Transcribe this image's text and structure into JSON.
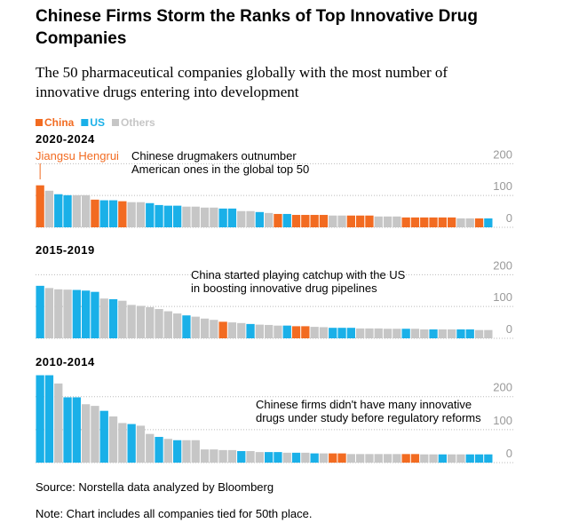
{
  "title": [
    "Chinese Firms Storm the Ranks of Top Innovative Drug",
    "Companies"
  ],
  "subtitle": [
    "The 50 pharmaceutical companies globally with the most number of",
    "innovative drugs entering into development"
  ],
  "source": "Source: Norstella data analyzed by Bloomberg",
  "note": "Note: Chart includes all companies tied for 50th place.",
  "chart_data": [
    {
      "type": "bar",
      "title": "2020-2024",
      "bar_label": "Jiangsu Hengrui",
      "annotation": [
        "Chinese drugmakers outnumber",
        "American ones in the global top 50"
      ],
      "ylim": [
        0,
        240
      ],
      "yticks": [
        0,
        100,
        200
      ],
      "grid": true,
      "series": [
        {
          "name": "China",
          "color": "#f26b21",
          "values": [
            132,
            null,
            null,
            null,
            null,
            null,
            87,
            null,
            null,
            82,
            null,
            null,
            null,
            null,
            null,
            null,
            null,
            null,
            null,
            null,
            null,
            null,
            null,
            null,
            null,
            null,
            42,
            null,
            39,
            39,
            39,
            39,
            null,
            null,
            37,
            37,
            37,
            null,
            null,
            null,
            31,
            31,
            31,
            31,
            31,
            31,
            null,
            null,
            28,
            null
          ]
        },
        {
          "name": "US",
          "color": "#1ab0e8",
          "values": [
            null,
            null,
            104,
            101,
            null,
            null,
            null,
            85,
            85,
            null,
            null,
            null,
            76,
            70,
            68,
            68,
            null,
            null,
            null,
            null,
            59,
            59,
            null,
            null,
            48,
            null,
            null,
            42,
            null,
            null,
            null,
            null,
            null,
            null,
            null,
            null,
            null,
            null,
            null,
            null,
            null,
            null,
            null,
            null,
            null,
            null,
            null,
            null,
            null,
            28
          ]
        },
        {
          "name": "Others",
          "color": "#c6c6c6",
          "values": [
            null,
            115,
            null,
            null,
            101,
            101,
            null,
            null,
            null,
            null,
            79,
            79,
            null,
            null,
            null,
            null,
            65,
            65,
            62,
            62,
            null,
            null,
            51,
            51,
            null,
            45,
            null,
            null,
            null,
            null,
            null,
            null,
            37,
            37,
            null,
            null,
            null,
            34,
            34,
            34,
            null,
            null,
            null,
            null,
            null,
            null,
            28,
            28,
            null,
            null
          ]
        }
      ]
    },
    {
      "type": "bar",
      "title": "2015-2019",
      "annotation": [
        "China started playing catchup with the US",
        "in boosting innovative drug pipelines"
      ],
      "ylim": [
        0,
        240
      ],
      "yticks": [
        0,
        100,
        200
      ],
      "grid": true,
      "series": [
        {
          "name": "China",
          "color": "#f26b21",
          "values": [
            null,
            null,
            null,
            null,
            null,
            null,
            null,
            null,
            null,
            null,
            null,
            null,
            null,
            null,
            null,
            null,
            null,
            null,
            null,
            null,
            52,
            null,
            null,
            null,
            null,
            null,
            null,
            null,
            38,
            38,
            null,
            null,
            null,
            null,
            null,
            null,
            null,
            null,
            null,
            null,
            null,
            null,
            null,
            null,
            null,
            null,
            null,
            null,
            null,
            null
          ]
        },
        {
          "name": "US",
          "color": "#1ab0e8",
          "values": [
            165,
            null,
            null,
            null,
            152,
            150,
            146,
            null,
            123,
            null,
            null,
            null,
            null,
            null,
            null,
            null,
            72,
            null,
            null,
            null,
            null,
            null,
            null,
            45,
            null,
            null,
            null,
            40,
            null,
            null,
            null,
            null,
            33,
            33,
            33,
            null,
            null,
            null,
            null,
            null,
            30,
            null,
            null,
            28,
            null,
            null,
            28,
            28,
            null,
            null
          ]
        },
        {
          "name": "Others",
          "color": "#c6c6c6",
          "values": [
            null,
            158,
            154,
            153,
            null,
            null,
            null,
            125,
            null,
            118,
            105,
            102,
            98,
            92,
            85,
            78,
            null,
            68,
            62,
            58,
            null,
            50,
            48,
            null,
            43,
            42,
            40,
            null,
            null,
            null,
            36,
            35,
            null,
            null,
            null,
            31,
            31,
            31,
            30,
            30,
            null,
            30,
            28,
            null,
            28,
            28,
            null,
            null,
            26,
            26
          ]
        }
      ]
    },
    {
      "type": "bar",
      "title": "2010-2014",
      "annotation": [
        "Chinese firms didn't have many innovative",
        "drugs under study before regulatory reforms"
      ],
      "ylim": [
        0,
        280
      ],
      "yticks": [
        0,
        100,
        200
      ],
      "grid": true,
      "series": [
        {
          "name": "China",
          "color": "#f26b21",
          "values": [
            null,
            null,
            null,
            null,
            null,
            null,
            null,
            null,
            null,
            null,
            null,
            null,
            null,
            null,
            null,
            null,
            null,
            null,
            null,
            null,
            null,
            null,
            null,
            null,
            null,
            null,
            null,
            null,
            null,
            null,
            null,
            null,
            28,
            28,
            null,
            null,
            null,
            null,
            null,
            null,
            26,
            26,
            null,
            null,
            null,
            null,
            null,
            null,
            null,
            null
          ]
        },
        {
          "name": "US",
          "color": "#1ab0e8",
          "values": [
            265,
            265,
            null,
            198,
            198,
            null,
            null,
            157,
            null,
            null,
            117,
            null,
            null,
            78,
            null,
            68,
            null,
            null,
            null,
            null,
            null,
            null,
            35,
            null,
            null,
            32,
            32,
            null,
            30,
            null,
            28,
            null,
            null,
            null,
            null,
            null,
            null,
            null,
            null,
            null,
            null,
            null,
            null,
            null,
            25,
            null,
            null,
            25,
            25,
            25
          ]
        },
        {
          "name": "Others",
          "color": "#c6c6c6",
          "values": [
            null,
            null,
            240,
            null,
            null,
            177,
            172,
            null,
            140,
            120,
            null,
            112,
            87,
            null,
            72,
            null,
            68,
            68,
            40,
            40,
            38,
            38,
            null,
            35,
            32,
            null,
            null,
            30,
            null,
            30,
            null,
            28,
            null,
            null,
            26,
            26,
            26,
            26,
            26,
            26,
            null,
            null,
            25,
            25,
            null,
            25,
            25,
            null,
            null,
            null
          ]
        }
      ]
    }
  ]
}
